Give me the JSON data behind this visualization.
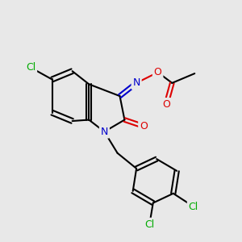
{
  "background_color": "#e8e8e8",
  "atom_colors": {
    "C": "#000000",
    "N": "#0000cc",
    "O": "#dd0000",
    "Cl": "#00aa00"
  },
  "bond_color": "#000000",
  "bond_width": 1.5,
  "font_size_atom": 9
}
